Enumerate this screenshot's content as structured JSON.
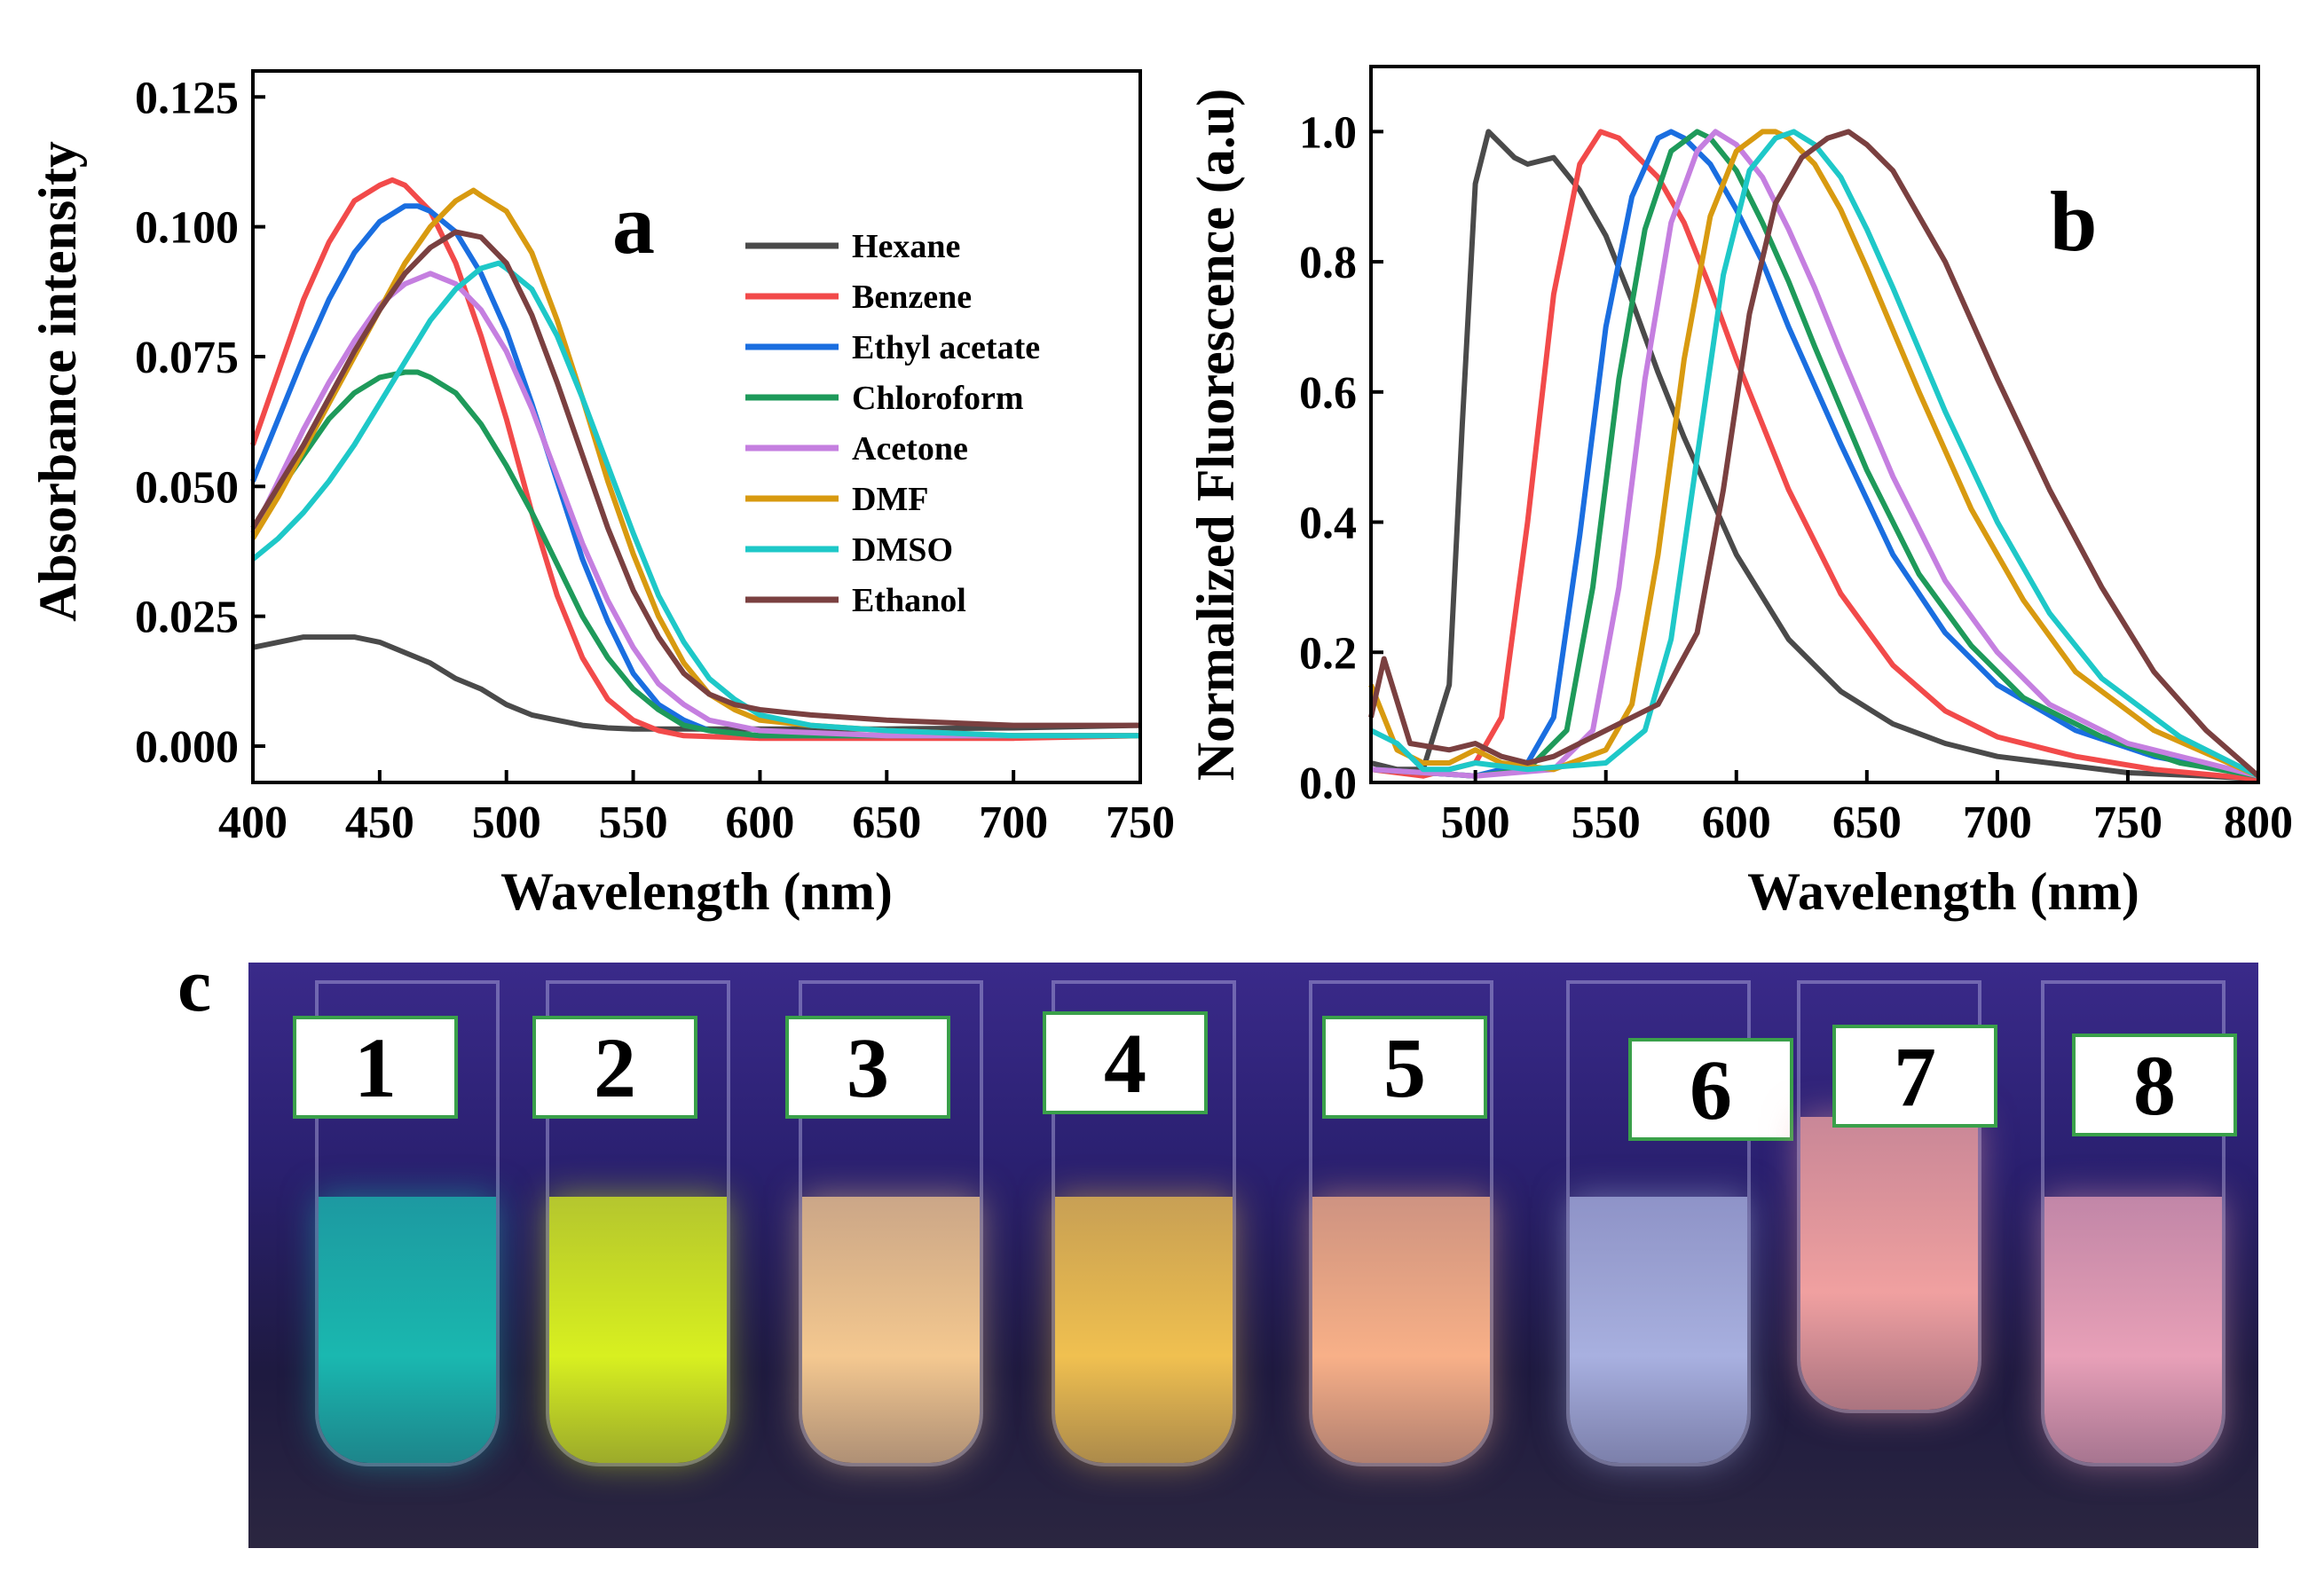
{
  "panel_a": {
    "letter": "a",
    "chart_data": {
      "type": "line",
      "title": "",
      "xlabel": "Wavelength (nm)",
      "ylabel": "Absorbance intensity",
      "xlim": [
        400,
        750
      ],
      "ylim": [
        -0.007,
        0.13
      ],
      "xticks": [
        400,
        450,
        500,
        550,
        600,
        650,
        700,
        750
      ],
      "yticks": [
        0.0,
        0.025,
        0.05,
        0.075,
        0.1,
        0.125
      ],
      "ytick_labels": [
        "0.000",
        "0.025",
        "0.050",
        "0.075",
        "0.100",
        "0.125"
      ],
      "legend_position": "upper-right",
      "series": [
        {
          "name": "Hexane",
          "color": "#4a4a4a",
          "x": [
            400,
            410,
            420,
            430,
            440,
            450,
            460,
            470,
            480,
            490,
            500,
            510,
            520,
            530,
            540,
            550,
            560,
            600,
            650,
            700,
            750
          ],
          "y": [
            0.019,
            0.02,
            0.021,
            0.021,
            0.021,
            0.02,
            0.018,
            0.016,
            0.013,
            0.011,
            0.008,
            0.006,
            0.005,
            0.004,
            0.0035,
            0.0033,
            0.0033,
            0.0033,
            0.0033,
            0.0035,
            0.004
          ]
        },
        {
          "name": "Benzene",
          "color": "#f24a4a",
          "x": [
            400,
            410,
            420,
            430,
            440,
            450,
            455,
            460,
            470,
            480,
            490,
            500,
            510,
            520,
            530,
            540,
            550,
            560,
            570,
            600,
            650,
            700,
            750
          ],
          "y": [
            0.058,
            0.072,
            0.086,
            0.097,
            0.105,
            0.108,
            0.109,
            0.108,
            0.103,
            0.093,
            0.079,
            0.063,
            0.045,
            0.029,
            0.017,
            0.009,
            0.005,
            0.003,
            0.002,
            0.0015,
            0.0015,
            0.0015,
            0.002
          ]
        },
        {
          "name": "Ethyl acetate",
          "color": "#1a6ee0",
          "x": [
            400,
            410,
            420,
            430,
            440,
            450,
            460,
            465,
            470,
            480,
            490,
            500,
            510,
            520,
            530,
            540,
            550,
            560,
            570,
            580,
            600,
            650,
            700,
            750
          ],
          "y": [
            0.051,
            0.063,
            0.075,
            0.086,
            0.095,
            0.101,
            0.104,
            0.104,
            0.103,
            0.099,
            0.091,
            0.08,
            0.066,
            0.051,
            0.036,
            0.024,
            0.014,
            0.008,
            0.005,
            0.003,
            0.002,
            0.002,
            0.002,
            0.002
          ]
        },
        {
          "name": "Chloroform",
          "color": "#1e9a5a",
          "x": [
            400,
            410,
            420,
            430,
            440,
            450,
            460,
            465,
            470,
            480,
            490,
            500,
            510,
            520,
            530,
            540,
            550,
            560,
            570,
            580,
            600,
            650,
            700,
            750
          ],
          "y": [
            0.041,
            0.049,
            0.056,
            0.063,
            0.068,
            0.071,
            0.072,
            0.072,
            0.071,
            0.068,
            0.062,
            0.054,
            0.045,
            0.035,
            0.025,
            0.017,
            0.011,
            0.007,
            0.004,
            0.003,
            0.002,
            0.002,
            0.002,
            0.002
          ]
        },
        {
          "name": "Acetone",
          "color": "#c57fe0",
          "x": [
            400,
            410,
            420,
            430,
            440,
            450,
            460,
            470,
            475,
            480,
            490,
            500,
            510,
            520,
            530,
            540,
            550,
            560,
            570,
            580,
            590,
            600,
            650,
            700,
            750
          ],
          "y": [
            0.041,
            0.051,
            0.061,
            0.07,
            0.078,
            0.085,
            0.089,
            0.091,
            0.09,
            0.089,
            0.084,
            0.076,
            0.065,
            0.052,
            0.039,
            0.028,
            0.019,
            0.012,
            0.008,
            0.005,
            0.004,
            0.003,
            0.002,
            0.002,
            0.002
          ]
        },
        {
          "name": "DMF",
          "color": "#d89a10",
          "x": [
            400,
            410,
            420,
            430,
            440,
            450,
            460,
            470,
            480,
            487,
            490,
            500,
            510,
            520,
            530,
            540,
            550,
            560,
            570,
            580,
            590,
            600,
            620,
            650,
            700,
            750
          ],
          "y": [
            0.04,
            0.048,
            0.057,
            0.066,
            0.075,
            0.084,
            0.093,
            0.1,
            0.105,
            0.107,
            0.106,
            0.103,
            0.095,
            0.082,
            0.067,
            0.051,
            0.037,
            0.025,
            0.016,
            0.01,
            0.007,
            0.005,
            0.004,
            0.003,
            0.002,
            0.002
          ]
        },
        {
          "name": "DMSO",
          "color": "#1ec8c8",
          "x": [
            400,
            410,
            420,
            430,
            440,
            450,
            460,
            470,
            480,
            490,
            497,
            500,
            510,
            520,
            530,
            540,
            550,
            560,
            570,
            580,
            590,
            600,
            620,
            650,
            700,
            750
          ],
          "y": [
            0.036,
            0.04,
            0.045,
            0.051,
            0.058,
            0.066,
            0.074,
            0.082,
            0.088,
            0.092,
            0.093,
            0.092,
            0.088,
            0.079,
            0.067,
            0.054,
            0.041,
            0.029,
            0.02,
            0.013,
            0.009,
            0.006,
            0.004,
            0.003,
            0.002,
            0.002
          ]
        },
        {
          "name": "Ethanol",
          "color": "#7a4040",
          "x": [
            400,
            410,
            420,
            430,
            440,
            450,
            460,
            470,
            480,
            490,
            500,
            510,
            520,
            530,
            540,
            550,
            560,
            570,
            580,
            590,
            600,
            620,
            650,
            700,
            750
          ],
          "y": [
            0.042,
            0.05,
            0.058,
            0.067,
            0.076,
            0.084,
            0.091,
            0.096,
            0.099,
            0.098,
            0.093,
            0.083,
            0.07,
            0.056,
            0.042,
            0.03,
            0.021,
            0.014,
            0.01,
            0.008,
            0.007,
            0.006,
            0.005,
            0.004,
            0.004
          ]
        }
      ]
    }
  },
  "panel_b": {
    "letter": "b",
    "chart_data": {
      "type": "line",
      "title": "",
      "xlabel": "Wavelength (nm)",
      "ylabel": "Normalized Fluorescence (a.u)",
      "xlim": [
        460,
        800
      ],
      "ylim": [
        0,
        1.1
      ],
      "xticks": [
        500,
        550,
        600,
        650,
        700,
        750,
        800
      ],
      "yticks": [
        0.0,
        0.2,
        0.4,
        0.6,
        0.8,
        1.0
      ],
      "ytick_labels": [
        "0.0",
        "0.2",
        "0.4",
        "0.6",
        "0.8",
        "1.0"
      ],
      "series": [
        {
          "name": "Hexane",
          "color": "#4a4a4a",
          "x": [
            460,
            470,
            480,
            490,
            495,
            500,
            505,
            510,
            515,
            520,
            530,
            540,
            550,
            560,
            570,
            580,
            600,
            620,
            640,
            660,
            680,
            700,
            720,
            750,
            780,
            800
          ],
          "y": [
            0.03,
            0.02,
            0.02,
            0.15,
            0.55,
            0.92,
            1.0,
            0.98,
            0.96,
            0.95,
            0.96,
            0.91,
            0.84,
            0.74,
            0.63,
            0.53,
            0.35,
            0.22,
            0.14,
            0.09,
            0.06,
            0.04,
            0.03,
            0.015,
            0.01,
            0.005
          ]
        },
        {
          "name": "Benzene",
          "color": "#f24a4a",
          "x": [
            460,
            480,
            500,
            510,
            520,
            530,
            540,
            548,
            555,
            560,
            570,
            580,
            590,
            600,
            620,
            640,
            660,
            680,
            700,
            730,
            760,
            800
          ],
          "y": [
            0.02,
            0.01,
            0.03,
            0.1,
            0.4,
            0.75,
            0.95,
            1.0,
            0.99,
            0.97,
            0.93,
            0.86,
            0.76,
            0.65,
            0.45,
            0.29,
            0.18,
            0.11,
            0.07,
            0.04,
            0.02,
            0.005
          ]
        },
        {
          "name": "Ethyl acetate",
          "color": "#1a6ee0",
          "x": [
            460,
            500,
            520,
            530,
            540,
            550,
            560,
            570,
            575,
            580,
            590,
            600,
            610,
            620,
            640,
            660,
            680,
            700,
            730,
            760,
            800
          ],
          "y": [
            0.02,
            0.01,
            0.03,
            0.1,
            0.38,
            0.7,
            0.9,
            0.99,
            1.0,
            0.99,
            0.95,
            0.88,
            0.8,
            0.7,
            0.52,
            0.35,
            0.23,
            0.15,
            0.08,
            0.04,
            0.01
          ]
        },
        {
          "name": "Chloroform",
          "color": "#1e9a5a",
          "x": [
            460,
            500,
            520,
            535,
            545,
            555,
            565,
            575,
            585,
            590,
            600,
            610,
            620,
            630,
            650,
            670,
            690,
            710,
            740,
            770,
            800
          ],
          "y": [
            0.02,
            0.01,
            0.02,
            0.08,
            0.3,
            0.62,
            0.85,
            0.97,
            1.0,
            0.99,
            0.94,
            0.86,
            0.77,
            0.67,
            0.48,
            0.32,
            0.21,
            0.13,
            0.07,
            0.03,
            0.01
          ]
        },
        {
          "name": "Acetone",
          "color": "#c57fe0",
          "x": [
            460,
            500,
            530,
            545,
            555,
            565,
            575,
            585,
            592,
            600,
            610,
            620,
            630,
            640,
            660,
            680,
            700,
            720,
            750,
            780,
            800
          ],
          "y": [
            0.02,
            0.01,
            0.02,
            0.08,
            0.3,
            0.62,
            0.86,
            0.97,
            1.0,
            0.98,
            0.93,
            0.85,
            0.76,
            0.66,
            0.47,
            0.31,
            0.2,
            0.12,
            0.06,
            0.03,
            0.01
          ]
        },
        {
          "name": "DMF",
          "color": "#d89a10",
          "x": [
            460,
            470,
            480,
            490,
            500,
            510,
            530,
            550,
            560,
            570,
            580,
            590,
            600,
            610,
            615,
            620,
            630,
            640,
            650,
            670,
            690,
            710,
            730,
            760,
            800
          ],
          "y": [
            0.15,
            0.05,
            0.03,
            0.03,
            0.05,
            0.03,
            0.02,
            0.05,
            0.12,
            0.35,
            0.65,
            0.87,
            0.97,
            1.0,
            1.0,
            0.99,
            0.95,
            0.88,
            0.79,
            0.6,
            0.42,
            0.28,
            0.17,
            0.08,
            0.01
          ]
        },
        {
          "name": "DMSO",
          "color": "#1ec8c8",
          "x": [
            460,
            470,
            480,
            490,
            500,
            520,
            550,
            565,
            575,
            585,
            595,
            605,
            615,
            622,
            630,
            640,
            650,
            660,
            680,
            700,
            720,
            740,
            770,
            800
          ],
          "y": [
            0.08,
            0.06,
            0.02,
            0.02,
            0.03,
            0.02,
            0.03,
            0.08,
            0.22,
            0.5,
            0.78,
            0.94,
            0.99,
            1.0,
            0.98,
            0.93,
            0.85,
            0.76,
            0.57,
            0.4,
            0.26,
            0.16,
            0.07,
            0.01
          ]
        },
        {
          "name": "Ethanol",
          "color": "#7a4040",
          "x": [
            460,
            465,
            475,
            490,
            500,
            510,
            520,
            530,
            550,
            570,
            585,
            595,
            605,
            615,
            625,
            635,
            643,
            650,
            660,
            680,
            700,
            720,
            740,
            760,
            780,
            800
          ],
          "y": [
            0.1,
            0.19,
            0.06,
            0.05,
            0.06,
            0.04,
            0.03,
            0.04,
            0.08,
            0.12,
            0.23,
            0.45,
            0.72,
            0.89,
            0.96,
            0.99,
            1.0,
            0.98,
            0.94,
            0.8,
            0.62,
            0.45,
            0.3,
            0.17,
            0.08,
            0.01
          ]
        }
      ]
    }
  },
  "panel_c": {
    "letter": "c",
    "tubes": [
      {
        "label": "1",
        "color": "#1ab8b0"
      },
      {
        "label": "2",
        "color": "#d8f020"
      },
      {
        "label": "3",
        "color": "#f4c890"
      },
      {
        "label": "4",
        "color": "#f0c050"
      },
      {
        "label": "5",
        "color": "#f8b088"
      },
      {
        "label": "6",
        "color": "#a8b0e0"
      },
      {
        "label": "7",
        "color": "#f0a0a0"
      },
      {
        "label": "8",
        "color": "#e8a0b8"
      }
    ]
  }
}
